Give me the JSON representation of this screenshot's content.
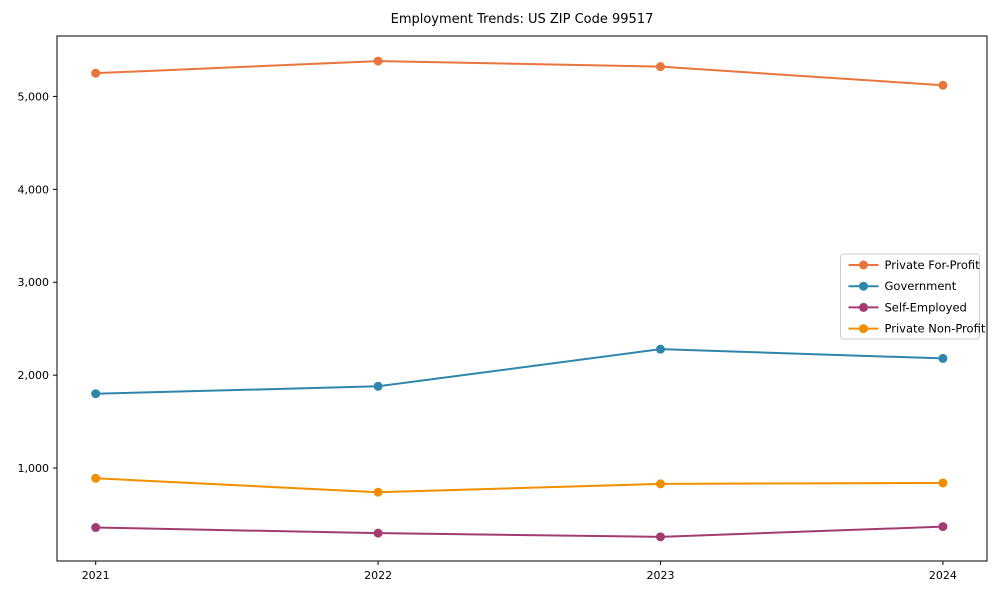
{
  "figure": {
    "background": "#ffffff",
    "axis_color": "#000000",
    "text_color": "#000000"
  },
  "chart_data": {
    "type": "line",
    "title": "Employment Trends: US ZIP Code 99517",
    "xlabel": "",
    "ylabel": "",
    "grid": false,
    "marker": "circle",
    "categories": [
      "2021",
      "2022",
      "2023",
      "2024"
    ],
    "series": [
      {
        "name": "Private For-Profit",
        "color": "#E8763C",
        "values": [
          5250,
          5380,
          5320,
          5120
        ]
      },
      {
        "name": "Government",
        "color": "#2E86AB",
        "values": [
          1800,
          1880,
          2280,
          2180
        ]
      },
      {
        "name": "Self-Employed",
        "color": "#A23B72",
        "values": [
          360,
          300,
          260,
          370
        ]
      },
      {
        "name": "Private Non-Profit",
        "color": "#F18F01",
        "values": [
          890,
          740,
          830,
          840
        ]
      }
    ],
    "ylim": [
      0,
      5650
    ],
    "yticks": [
      1000,
      2000,
      3000,
      4000,
      5000
    ],
    "ytick_labels": [
      "1,000",
      "2,000",
      "3,000",
      "4,000",
      "5,000"
    ],
    "legend": {
      "position": "center right",
      "border_color": "#cccccc",
      "background": "#ffffff"
    }
  }
}
